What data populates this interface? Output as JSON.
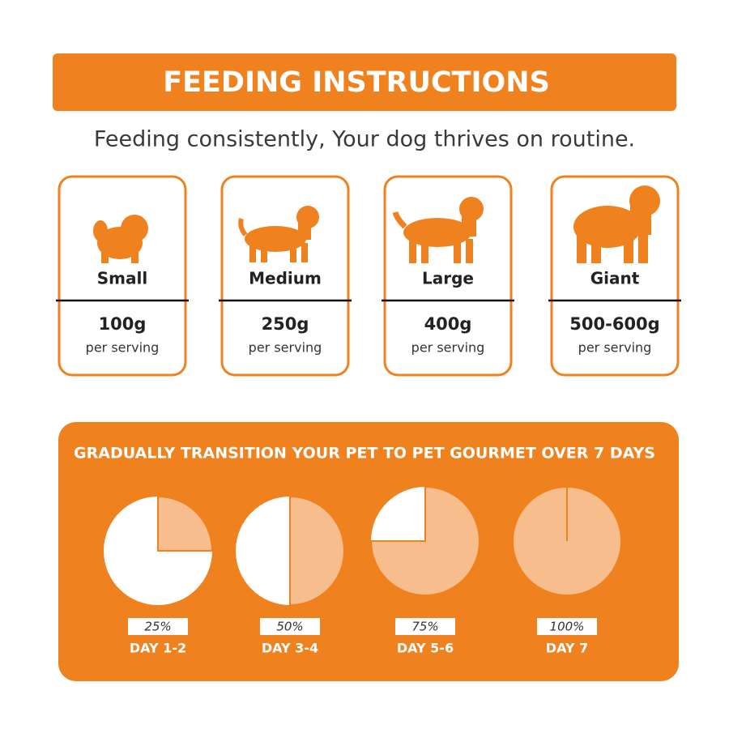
{
  "header": {
    "title": "FEEDING INSTRUCTIONS",
    "subtitle": "Feeding consistently, Your dog thrives on routine."
  },
  "sizes": [
    {
      "label": "Small",
      "amount": "100g",
      "unit": "per serving"
    },
    {
      "label": "Medium",
      "amount": "250g",
      "unit": "per serving"
    },
    {
      "label": "Large",
      "amount": "400g",
      "unit": "per serving"
    },
    {
      "label": "Giant",
      "amount": "500-600g",
      "unit": "per serving"
    }
  ],
  "transition": {
    "title": "GRADUALLY TRANSITION YOUR PET TO PET GOURMET OVER 7 DAYS",
    "stages": [
      {
        "percent": {
          "value": 25,
          "label": "25%"
        },
        "day": "DAY 1-2"
      },
      {
        "percent": {
          "value": 50,
          "label": "50%"
        },
        "day": "DAY 3-4"
      },
      {
        "percent": {
          "value": 75,
          "label": "75%"
        },
        "day": "DAY 5-6"
      },
      {
        "percent": {
          "value": 100,
          "label": "100%"
        },
        "day": "DAY 7"
      }
    ]
  }
}
